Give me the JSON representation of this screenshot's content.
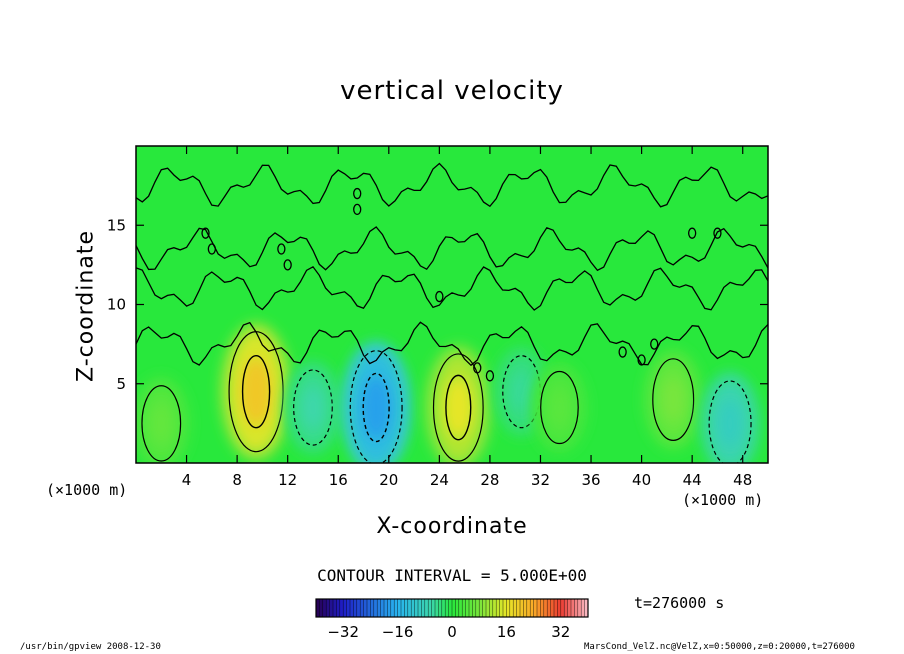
{
  "title": "vertical velocity",
  "xlabel": "X-coordinate",
  "ylabel": "Z-coordinate",
  "x_unit": "(×1000 m)",
  "contour_interval": "CONTOUR INTERVAL = 5.000E+00",
  "time_label": "t=276000 s",
  "footer_left": "/usr/bin/gpview  2008-12-30",
  "footer_right": "MarsCond_VelZ.nc@VelZ,x=0:50000,z=0:20000,t=276000",
  "chart_data": {
    "type": "heatmap",
    "title": "vertical velocity",
    "xlabel": "X-coordinate",
    "ylabel": "Z-coordinate",
    "x_unit": "(×1000 m)",
    "xlim": [
      0,
      50
    ],
    "ylim": [
      0,
      20
    ],
    "x_ticks": [
      4,
      8,
      12,
      16,
      20,
      24,
      28,
      32,
      36,
      40,
      44,
      48
    ],
    "y_ticks": [
      5,
      10,
      15
    ],
    "colorbar": {
      "ticks": [
        -32,
        -16,
        0,
        16,
        32
      ],
      "range": [
        -40,
        40
      ],
      "contour_interval": 5.0
    },
    "features": [
      {
        "x": 2,
        "z": 2.5,
        "value": 6
      },
      {
        "x": 9.5,
        "z": 4.5,
        "value": 20
      },
      {
        "x": 14,
        "z": 3.5,
        "value": -6
      },
      {
        "x": 19,
        "z": 3.5,
        "value": -18
      },
      {
        "x": 25.5,
        "z": 3.5,
        "value": 16
      },
      {
        "x": 30.5,
        "z": 4.5,
        "value": -5
      },
      {
        "x": 33.5,
        "z": 3.5,
        "value": 5
      },
      {
        "x": 42.5,
        "z": 4,
        "value": 8
      },
      {
        "x": 47,
        "z": 2.5,
        "value": -9
      }
    ],
    "time": "t=276000 s"
  }
}
